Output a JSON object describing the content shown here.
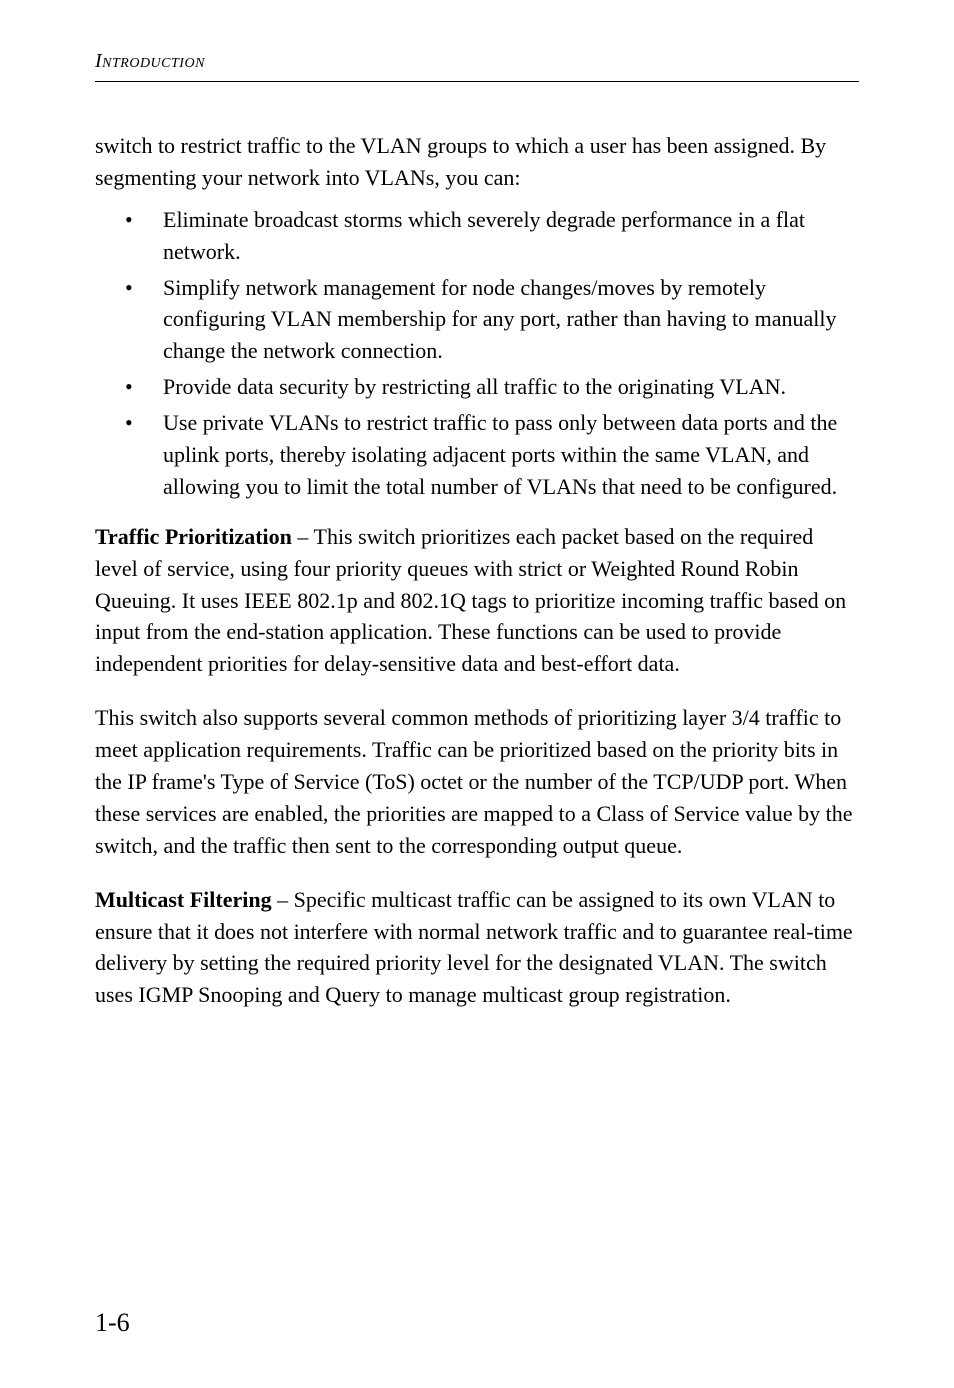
{
  "runningHead": "Introduction",
  "intro": "switch to restrict traffic to the VLAN groups to which a user has been assigned. By segmenting your network into VLANs, you can:",
  "bullets": [
    "Eliminate broadcast storms which severely degrade performance in a flat network.",
    "Simplify network management for node changes/moves by remotely configuring VLAN membership for any port, rather than having to manually change the network connection.",
    "Provide data security by restricting all traffic to the originating VLAN.",
    "Use private VLANs to restrict traffic to pass only between data ports and the uplink ports, thereby isolating adjacent ports within the same VLAN, and allowing you to limit the total number of VLANs that need to be configured."
  ],
  "trafficPrioritization": {
    "label": "Traffic Prioritization",
    "text": " – This switch prioritizes each packet based on the required level of service, using four priority queues with strict or Weighted Round Robin Queuing. It uses IEEE 802.1p and 802.1Q tags to prioritize incoming traffic based on input from the end-station application. These functions can be used to provide independent priorities for delay-sensitive data and best-effort data."
  },
  "trafficPara2": "This switch also supports several common methods of prioritizing layer 3/4 traffic to meet application requirements. Traffic can be prioritized based on the priority bits in the IP frame's Type of Service (ToS) octet or the number of the TCP/UDP port. When these services are enabled, the priorities are mapped to a Class of Service value by the switch, and the traffic then sent to the corresponding output queue.",
  "multicastFiltering": {
    "label": "Multicast Filtering",
    "text": " – Specific multicast traffic can be assigned to its own VLAN to ensure that it does not interfere with normal network traffic and to guarantee real-time delivery by setting the required priority level for the designated VLAN. The switch uses IGMP Snooping and Query to manage multicast group registration."
  },
  "pageNumber": "1-6"
}
